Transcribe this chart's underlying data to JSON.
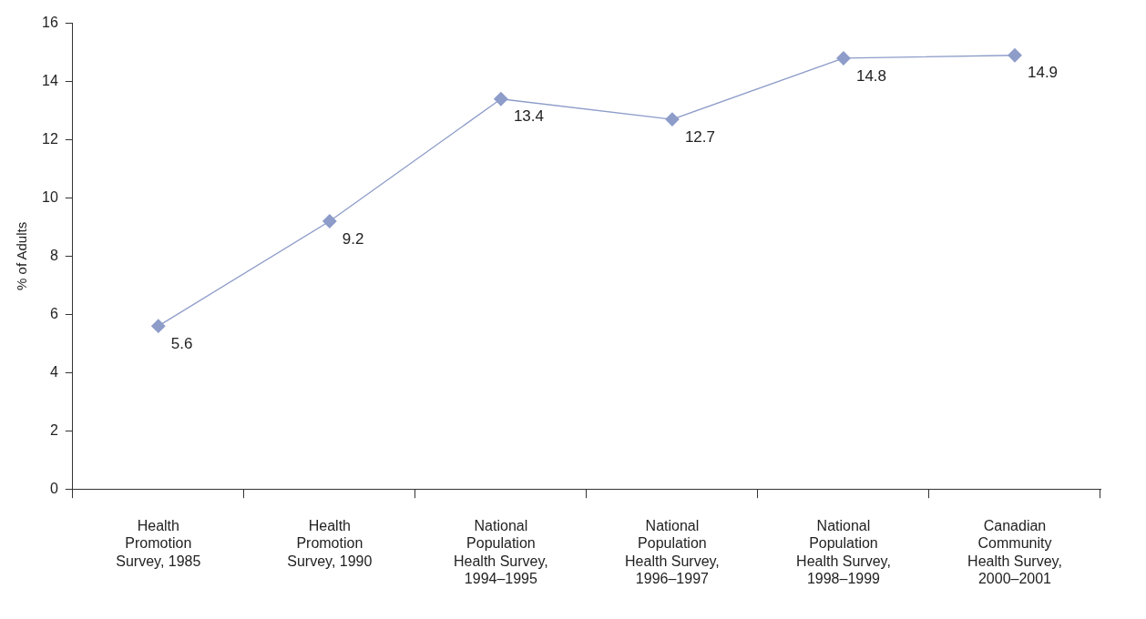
{
  "chart_data": {
    "type": "line",
    "ylabel": "% of Adults",
    "categories": [
      "Health Promotion Survey, 1985",
      "Health Promotion Survey, 1990",
      "National Population Health Survey, 1994–1995",
      "National Population Health Survey, 1996–1997",
      "National Population Health Survey, 1998–1999",
      "Canadian Community Health Survey, 2000–2001"
    ],
    "values": [
      5.6,
      9.2,
      13.4,
      12.7,
      14.8,
      14.9
    ],
    "color": "#8d9cc9",
    "ylim": [
      0,
      16
    ],
    "yticks": [
      0,
      2,
      4,
      6,
      8,
      10,
      12,
      14,
      16
    ],
    "grid": false,
    "legend": false,
    "marker": "diamond",
    "line_style": "solid",
    "data_labels": true
  }
}
